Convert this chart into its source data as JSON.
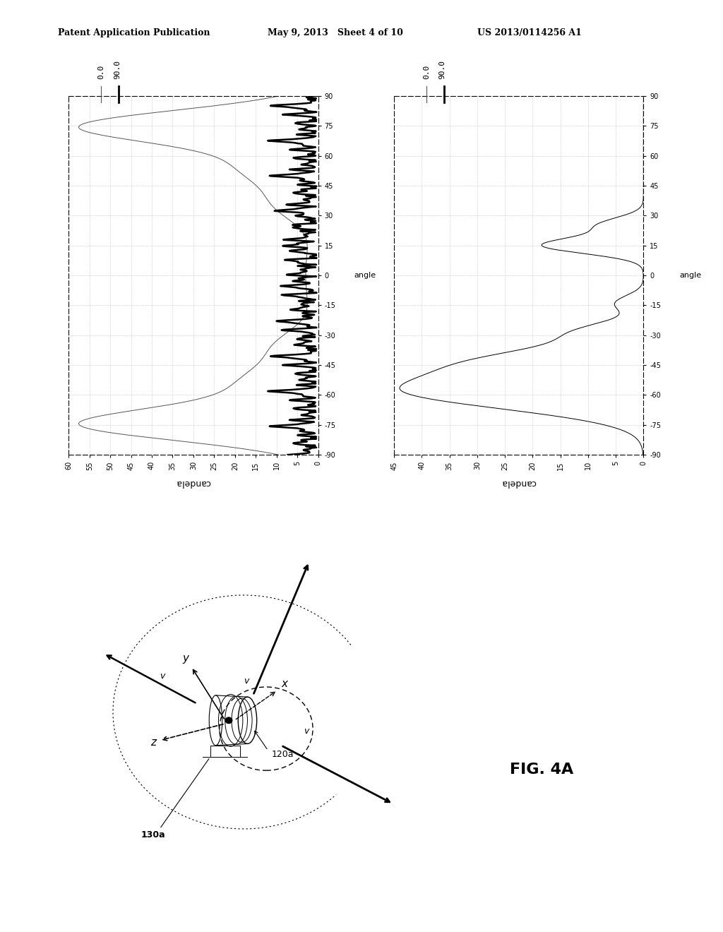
{
  "header_left": "Patent Application Publication",
  "header_mid": "May 9, 2013   Sheet 4 of 10",
  "header_right": "US 2013/0114256 A1",
  "background_color": "#ffffff",
  "fig4a_label": "FIG. 4A",
  "legend1_labels": [
    "0.0",
    "90.0"
  ],
  "legend2_labels": [
    "0.0",
    "90.0"
  ],
  "plot1_ylabel_rot": "candela",
  "plot2_ylabel_rot": "candela",
  "plot1_xlabel_right": "angle",
  "plot2_xlabel_right": "angle",
  "plot1_xticks": [
    0,
    5,
    10,
    15,
    20,
    25,
    30,
    35,
    40,
    45,
    50,
    55,
    60
  ],
  "plot2_xticks": [
    0,
    5,
    10,
    15,
    20,
    25,
    30,
    35,
    40,
    45
  ],
  "plot_yticks": [
    90,
    75,
    60,
    45,
    30,
    15,
    0,
    -15,
    -30,
    -45,
    -60,
    -75,
    -90
  ]
}
